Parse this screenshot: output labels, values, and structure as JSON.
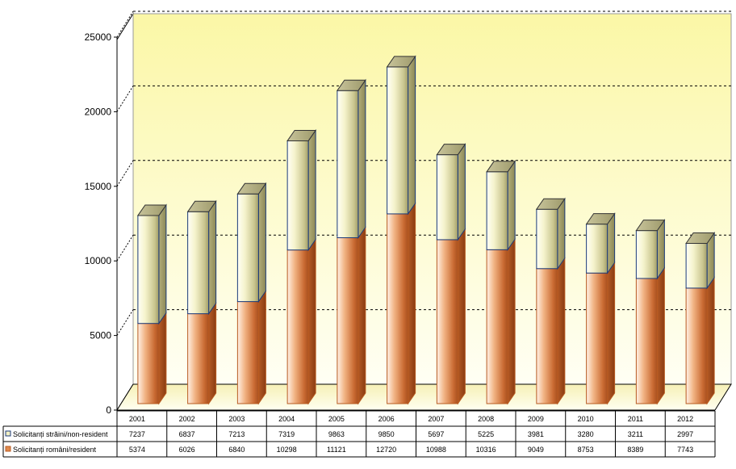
{
  "chart_data": {
    "type": "bar",
    "stacked": true,
    "three_d": true,
    "categories": [
      "2001",
      "2002",
      "2003",
      "2004",
      "2005",
      "2006",
      "2007",
      "2008",
      "2009",
      "2010",
      "2011",
      "2012"
    ],
    "series": [
      {
        "name": "Solicitanți români/resident",
        "color": "#e08a4e",
        "values": [
          5374,
          6026,
          6840,
          10298,
          11121,
          12720,
          10988,
          10316,
          9049,
          8753,
          8389,
          7743
        ]
      },
      {
        "name": "Solicitanți străini/non-resident",
        "color": "#f3f0c4",
        "values": [
          7237,
          6837,
          7213,
          7319,
          9863,
          9850,
          5697,
          5225,
          3981,
          3280,
          3211,
          2997
        ]
      }
    ],
    "y_ticks": [
      "0",
      "5000",
      "10000",
      "15000",
      "20000",
      "25000"
    ],
    "ylim": [
      0,
      25000
    ],
    "grid": true,
    "legend": "data-table-bottom",
    "table_rows": [
      {
        "label": "Solicitanți străini/non-resident",
        "series_index": 1
      },
      {
        "label": "Solicitanți români/resident",
        "series_index": 0
      }
    ]
  }
}
